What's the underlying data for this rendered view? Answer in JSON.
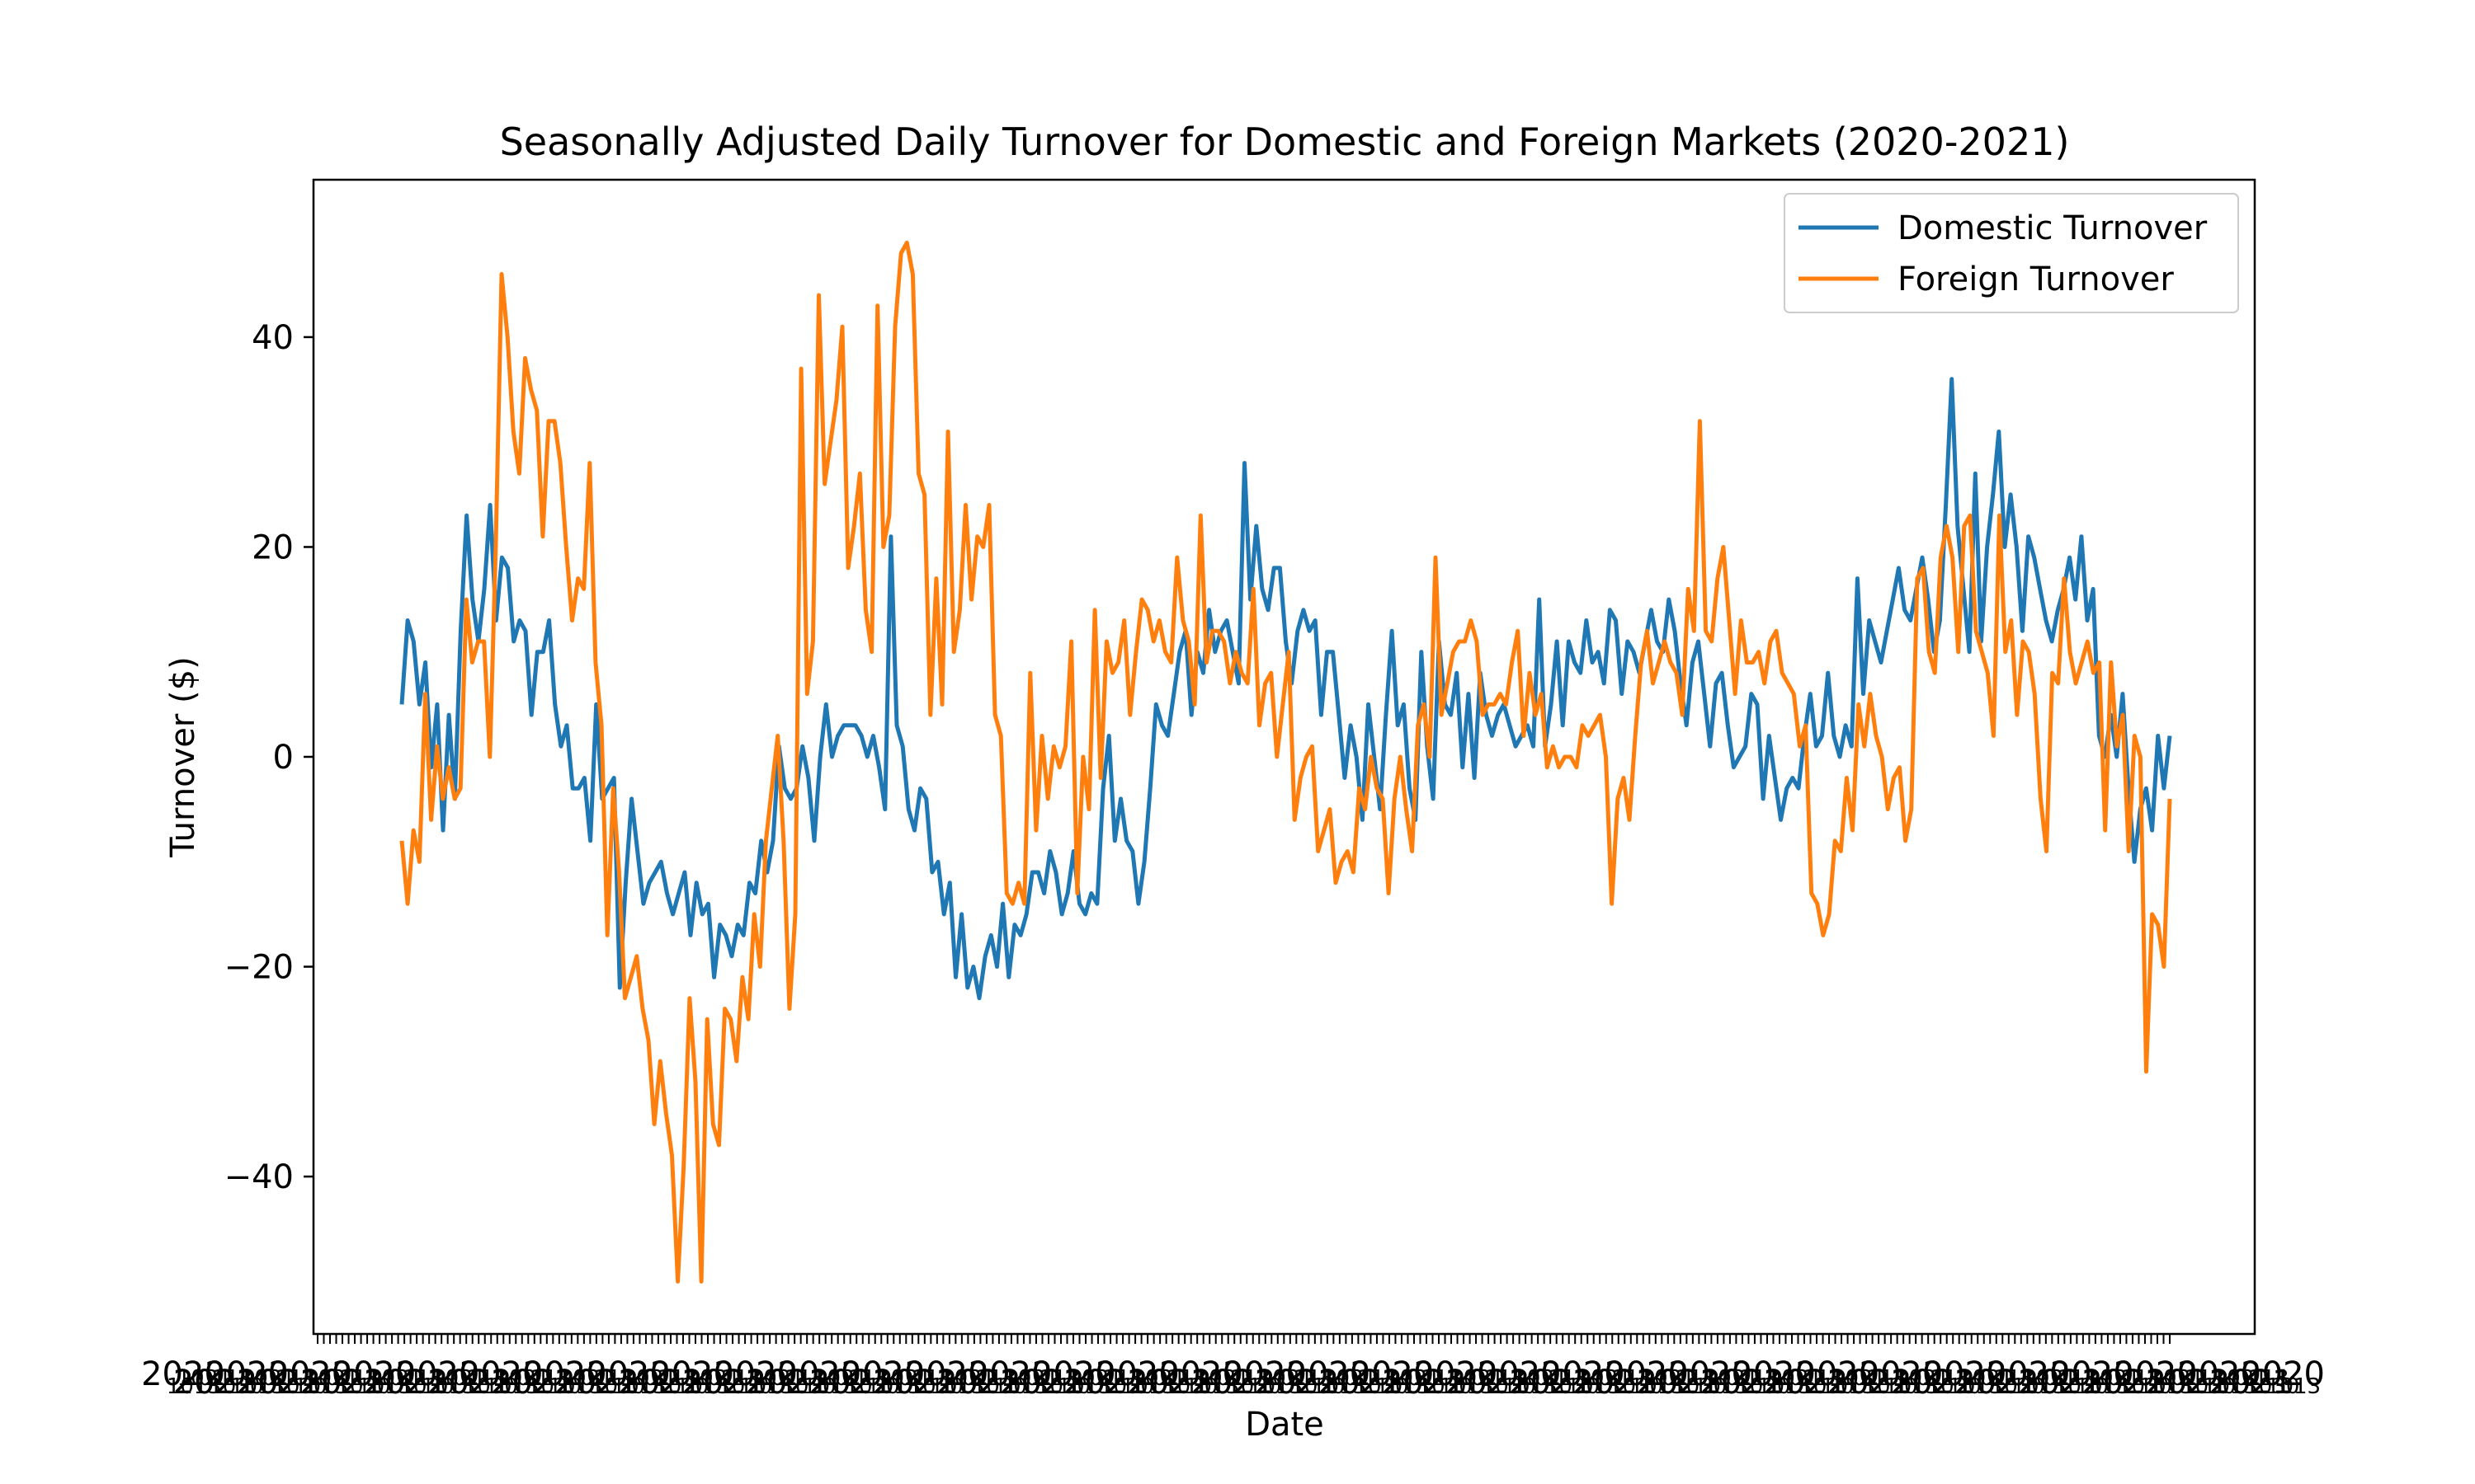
{
  "chart_data": {
    "type": "line",
    "title": "Seasonally Adjusted Daily Turnover for Domestic and Foreign Markets (2020-2021)",
    "xlabel": "Date",
    "ylabel": "Turnover ($)",
    "ylim": [
      -55,
      55
    ],
    "yticks": [
      -40,
      -20,
      0,
      20,
      40
    ],
    "ytick_labels": [
      "−40",
      "−20",
      "0",
      "20",
      "40"
    ],
    "x_tick_labels_note": "dense overlapping date tick labels (illegible)",
    "grid": false,
    "legend": "top-right",
    "series": [
      {
        "name": "Domestic Turnover",
        "color": "#1f77b4",
        "values": [
          5,
          13,
          11,
          5,
          9,
          -1,
          5,
          -7,
          4,
          -4,
          12,
          23,
          15,
          11,
          16,
          24,
          13,
          19,
          18,
          11,
          13,
          12,
          4,
          10,
          10,
          13,
          5,
          1,
          3,
          -3,
          -3,
          -2,
          -8,
          5,
          -4,
          -3,
          -2,
          -22,
          -12,
          -4,
          -9,
          -14,
          -12,
          -11,
          -10,
          -13,
          -15,
          -13,
          -11,
          -17,
          -12,
          -15,
          -14,
          -21,
          -16,
          -17,
          -19,
          -16,
          -17,
          -12,
          -13,
          -8,
          -11,
          -8,
          1,
          -3,
          -4,
          -3,
          1,
          -2,
          -8,
          0,
          5,
          0,
          2,
          3,
          3,
          3,
          2,
          0,
          2,
          -1,
          -5,
          21,
          3,
          1,
          -5,
          -7,
          -3,
          -4,
          -11,
          -10,
          -15,
          -12,
          -21,
          -15,
          -22,
          -20,
          -23,
          -19,
          -17,
          -20,
          -14,
          -21,
          -16,
          -17,
          -15,
          -11,
          -11,
          -13,
          -9,
          -11,
          -15,
          -13,
          -9,
          -14,
          -15,
          -13,
          -14,
          -3,
          2,
          -8,
          -4,
          -8,
          -9,
          -14,
          -10,
          -3,
          5,
          3,
          2,
          6,
          10,
          12,
          4,
          10,
          8,
          14,
          10,
          12,
          13,
          10,
          7,
          28,
          15,
          22,
          16,
          14,
          18,
          18,
          11,
          7,
          12,
          14,
          12,
          13,
          4,
          10,
          10,
          4,
          -2,
          3,
          0,
          -6,
          5,
          0,
          -5,
          4,
          12,
          3,
          5,
          -3,
          -6,
          10,
          1,
          -4,
          11,
          5,
          4,
          8,
          -1,
          6,
          -2,
          8,
          4,
          2,
          4,
          5,
          3,
          1,
          2,
          3,
          1,
          15,
          1,
          5,
          11,
          3,
          11,
          9,
          8,
          13,
          9,
          10,
          7,
          14,
          13,
          6,
          11,
          10,
          8,
          11,
          14,
          11,
          10,
          15,
          12,
          7,
          3,
          9,
          11,
          6,
          1,
          7,
          8,
          3,
          -1,
          0,
          1,
          6,
          5,
          -4,
          2,
          -2,
          -6,
          -3,
          -2,
          -3,
          2,
          6,
          1,
          2,
          8,
          2,
          0,
          3,
          1,
          17,
          6,
          13,
          11,
          9,
          12,
          15,
          18,
          14,
          13,
          16,
          19,
          15,
          10,
          13,
          24,
          36,
          22,
          16,
          10,
          27,
          11,
          20,
          25,
          31,
          20,
          25,
          20,
          12,
          21,
          19,
          16,
          13,
          11,
          14,
          16,
          19,
          15,
          21,
          13,
          16,
          2,
          0,
          4,
          0,
          6,
          -3,
          -10,
          -5,
          -3,
          -7,
          2,
          -3,
          2
        ]
      },
      {
        "name": "Foreign Turnover",
        "color": "#ff7f0e",
        "values": [
          -8,
          -14,
          -7,
          -10,
          6,
          -6,
          1,
          -4,
          -1,
          -4,
          -3,
          15,
          9,
          11,
          11,
          0,
          20,
          46,
          40,
          31,
          27,
          38,
          35,
          33,
          21,
          32,
          32,
          28,
          20,
          13,
          17,
          16,
          28,
          9,
          3,
          -17,
          -3,
          -11,
          -23,
          -21,
          -19,
          -24,
          -27,
          -35,
          -29,
          -34,
          -38,
          -50,
          -39,
          -23,
          -31,
          -50,
          -25,
          -35,
          -37,
          -24,
          -25,
          -29,
          -21,
          -25,
          -15,
          -20,
          -8,
          -3,
          2,
          -8,
          -24,
          -15,
          37,
          6,
          11,
          44,
          26,
          30,
          34,
          41,
          18,
          22,
          27,
          14,
          10,
          43,
          20,
          23,
          41,
          48,
          49,
          46,
          27,
          25,
          4,
          17,
          5,
          31,
          10,
          14,
          24,
          15,
          21,
          20,
          24,
          4,
          2,
          -13,
          -14,
          -12,
          -14,
          8,
          -7,
          2,
          -4,
          1,
          -1,
          1,
          11,
          -13,
          0,
          -5,
          14,
          -2,
          11,
          8,
          9,
          13,
          4,
          10,
          15,
          14,
          11,
          13,
          10,
          9,
          19,
          13,
          11,
          5,
          23,
          9,
          12,
          12,
          11,
          7,
          10,
          8,
          7,
          16,
          3,
          7,
          8,
          0,
          5,
          10,
          -6,
          -2,
          0,
          1,
          -9,
          -7,
          -5,
          -12,
          -10,
          -9,
          -11,
          -3,
          -5,
          0,
          -3,
          -4,
          -13,
          -4,
          0,
          -5,
          -9,
          3,
          5,
          0,
          19,
          4,
          7,
          10,
          11,
          11,
          13,
          11,
          4,
          5,
          5,
          6,
          5,
          9,
          12,
          2,
          8,
          4,
          6,
          -1,
          1,
          -1,
          0,
          0,
          -1,
          3,
          2,
          3,
          4,
          0,
          -14,
          -4,
          -2,
          -6,
          2,
          9,
          12,
          7,
          9,
          11,
          9,
          8,
          4,
          16,
          12,
          32,
          12,
          11,
          17,
          20,
          13,
          6,
          13,
          9,
          9,
          10,
          7,
          11,
          12,
          8,
          7,
          6,
          1,
          3,
          -13,
          -14,
          -17,
          -15,
          -8,
          -9,
          -2,
          -7,
          5,
          1,
          6,
          2,
          0,
          -5,
          -2,
          -1,
          -8,
          -5,
          17,
          18,
          10,
          8,
          19,
          22,
          19,
          10,
          22,
          23,
          12,
          10,
          8,
          2,
          23,
          10,
          13,
          4,
          11,
          10,
          6,
          -4,
          -9,
          8,
          7,
          17,
          10,
          7,
          9,
          11,
          8,
          9,
          -7,
          9,
          1,
          4,
          -9,
          2,
          0,
          -30,
          -15,
          -16,
          -20,
          -4
        ]
      }
    ]
  }
}
